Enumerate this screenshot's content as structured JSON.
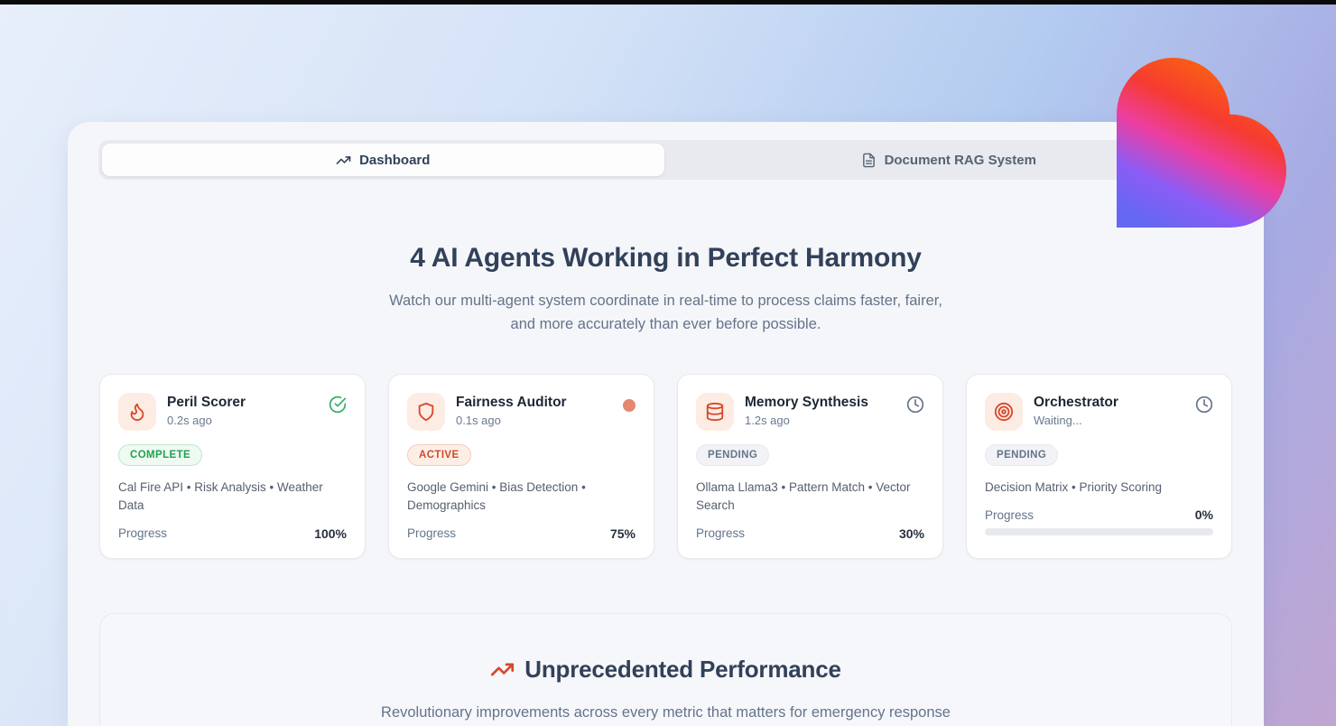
{
  "tabs": [
    {
      "label": "Dashboard",
      "active": true
    },
    {
      "label": "Document RAG System",
      "active": false
    }
  ],
  "agents_section": {
    "title": "4 AI Agents Working in Perfect Harmony",
    "subtitle": "Watch our multi-agent system coordinate in real-time to process claims faster, fairer, and more accurately than ever before possible.",
    "cards": [
      {
        "name": "Peril Scorer",
        "time": "0.2s ago",
        "icon": "flame-icon",
        "status": "COMPLETE",
        "status_icon": "check-circle-icon",
        "tags": "Cal Fire API • Risk Analysis • Weather Data",
        "progress_label": "Progress",
        "progress_text": "100%",
        "progress_value": 100
      },
      {
        "name": "Fairness Auditor",
        "time": "0.1s ago",
        "icon": "shield-icon",
        "status": "ACTIVE",
        "status_icon": "pulse-dot-icon",
        "tags": "Google Gemini • Bias Detection • Demographics",
        "progress_label": "Progress",
        "progress_text": "75%",
        "progress_value": 75
      },
      {
        "name": "Memory Synthesis",
        "time": "1.2s ago",
        "icon": "database-icon",
        "status": "PENDING",
        "status_icon": "clock-icon",
        "tags": "Ollama Llama3 • Pattern Match • Vector Search",
        "progress_label": "Progress",
        "progress_text": "30%",
        "progress_value": 30
      },
      {
        "name": "Orchestrator",
        "time": "Waiting...",
        "icon": "target-icon",
        "status": "PENDING",
        "status_icon": "clock-icon",
        "tags": "Decision Matrix • Priority Scoring",
        "progress_label": "Progress",
        "progress_text": "0%",
        "progress_value": 0
      }
    ]
  },
  "performance_section": {
    "title": "Unprecedented Performance",
    "subtitle": "Revolutionary improvements across every metric that matters for emergency response and social justice."
  },
  "colors": {
    "accent_rust": "#c64620",
    "badge_green": "#1fa350",
    "badge_orange": "#d4492a",
    "badge_gray": "#64748b",
    "heart_gradient": [
      "#fb7106",
      "#f63b31",
      "#ec3ea0",
      "#8b5cf6",
      "#6468f2"
    ]
  }
}
